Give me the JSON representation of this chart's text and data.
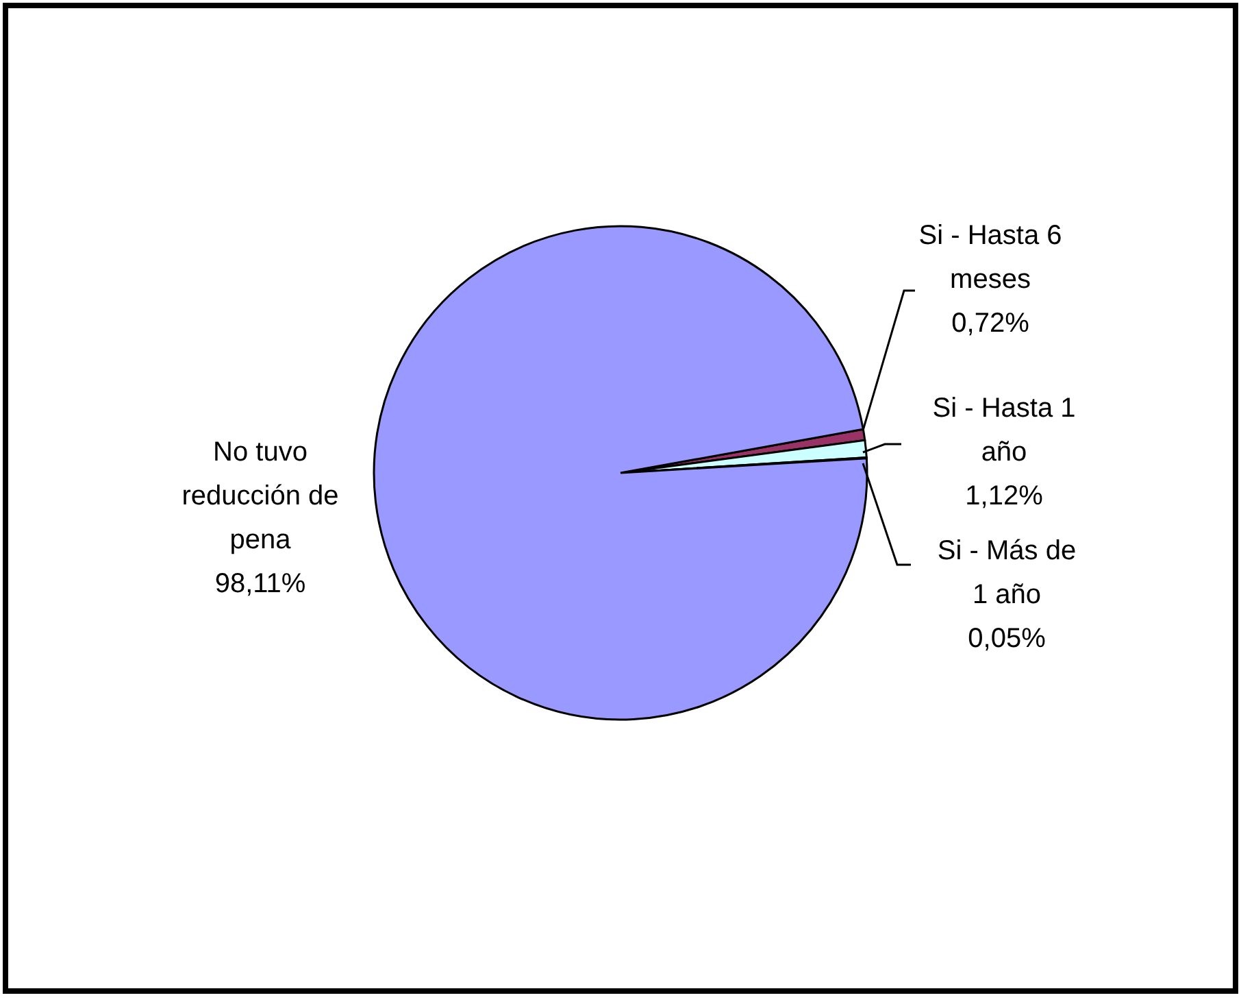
{
  "chart_data": {
    "type": "pie",
    "categories": [
      "Si - Hasta 6 meses",
      "Si - Hasta 1 año",
      "Si - Más de 1 año",
      "No tuvo reducción de pena"
    ],
    "values": [
      0.72,
      1.12,
      0.05,
      98.11
    ],
    "colors": [
      "#993366",
      "#ccffff",
      "#ffffcc",
      "#9999ff"
    ],
    "value_labels": [
      "0,72%",
      "1,12%",
      "0,05%",
      "98,11%"
    ]
  }
}
